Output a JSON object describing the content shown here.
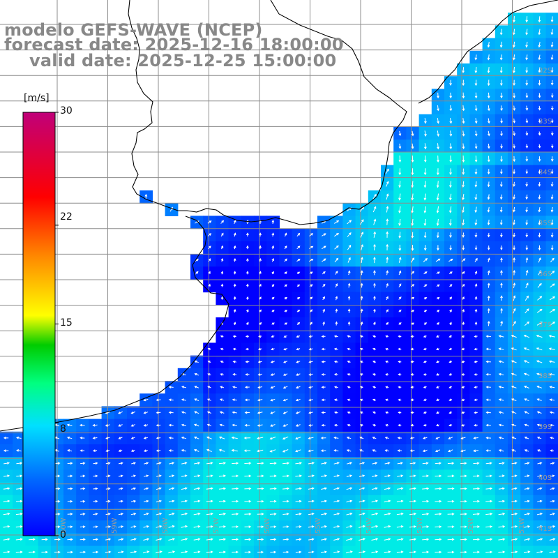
{
  "title": {
    "line1": "modelo GEFS-WAVE (NCEP)",
    "line2": "forecast date: 2025-12-16 18:00:00",
    "line3": "valid date: 2025-12-25 15:00:00"
  },
  "colorbar": {
    "unit": "[m/s]",
    "ticks": [
      "30",
      "22",
      "15",
      "8",
      "0"
    ],
    "tick_values": [
      30,
      22,
      15,
      8,
      0
    ],
    "range": [
      0,
      30
    ]
  },
  "grid_labels": {
    "lat_right": [
      "32S",
      "33S",
      "34S",
      "35S",
      "36S",
      "37S",
      "38S",
      "39S",
      "40S",
      "41S"
    ],
    "lon_bottom": [
      "60W",
      "59W",
      "58W",
      "57W",
      "56W",
      "55W",
      "54W",
      "53W",
      "52W",
      "51W"
    ]
  },
  "colors": {
    "land": "#ffffff",
    "gridline": "#8c8c8c",
    "coast": "#000000",
    "arrows": "#ffffff",
    "title_text": "#888888",
    "wind_low": "#0000ff",
    "wind_mid": "#00e0ff",
    "wind_high": "#ff0000"
  },
  "icons": {
    "arrow": "wind-arrow-icon"
  }
}
